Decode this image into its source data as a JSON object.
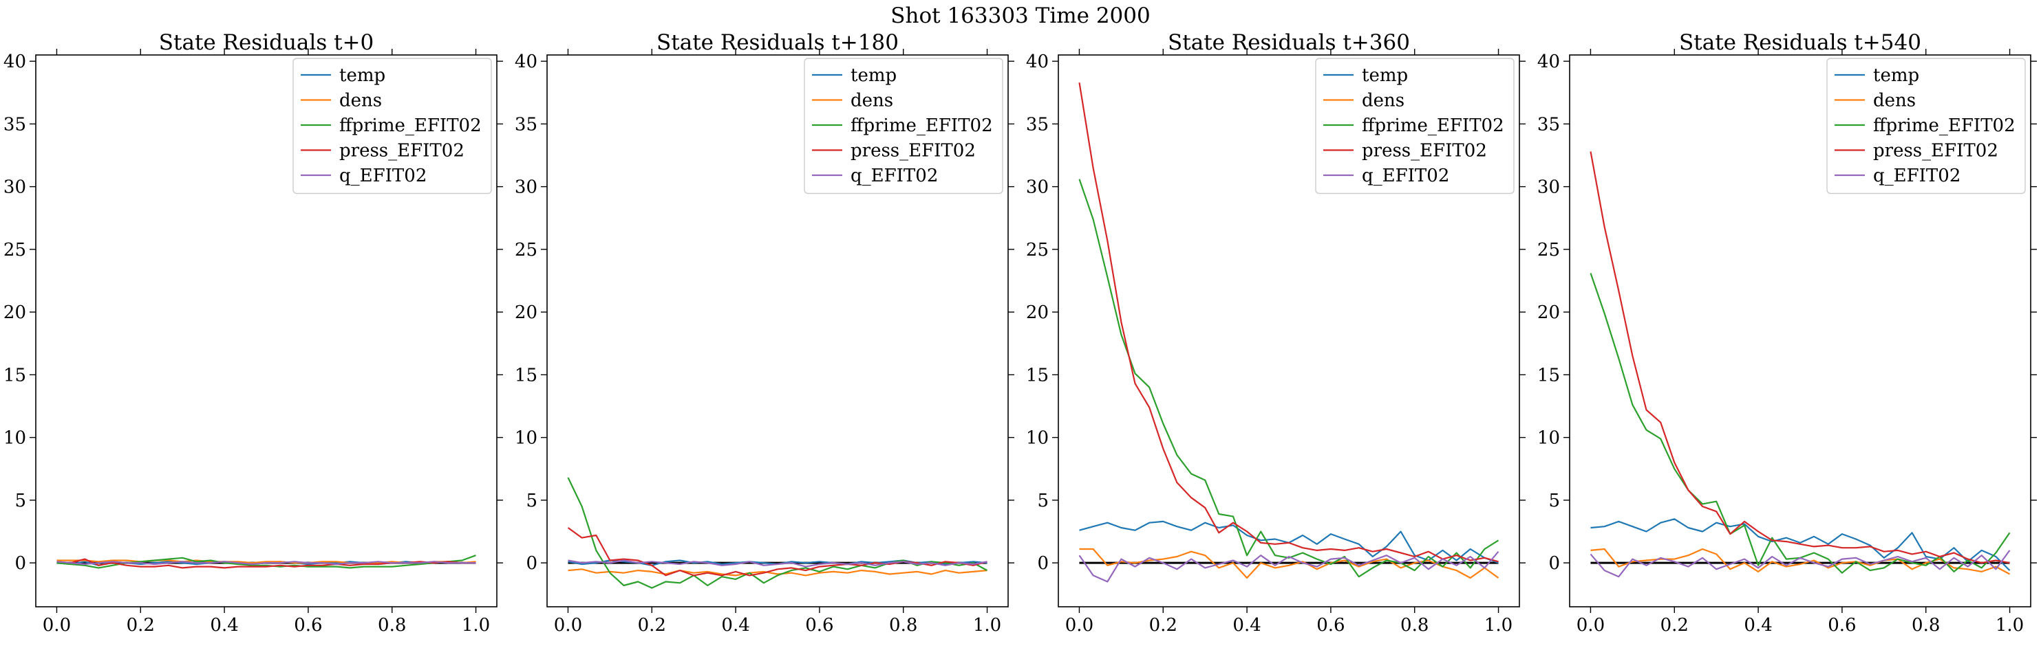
{
  "figure": {
    "suptitle": "Shot 163303   Time 2000"
  },
  "colors": {
    "temp": "#1f77b4",
    "dens": "#ff7f0e",
    "ffprime_EFIT02": "#2ca02c",
    "press_EFIT02": "#d62728",
    "q_EFIT02": "#9467bd",
    "zero_line": "#000000"
  },
  "chart_data": [
    {
      "type": "line",
      "title": "State Residuals t+0",
      "xlabel": "",
      "ylabel": "",
      "xlim": [
        -0.05,
        1.05
      ],
      "ylim": [
        -3.5,
        40.5
      ],
      "xticks": [
        "0.0",
        "0.2",
        "0.4",
        "0.6",
        "0.8",
        "1.0"
      ],
      "yticks": [
        "0",
        "5",
        "10",
        "15",
        "20",
        "25",
        "30",
        "35",
        "40"
      ],
      "legend": "top-right",
      "x": [
        0.0,
        0.033,
        0.067,
        0.1,
        0.133,
        0.167,
        0.2,
        0.233,
        0.267,
        0.3,
        0.333,
        0.367,
        0.4,
        0.433,
        0.467,
        0.5,
        0.533,
        0.567,
        0.6,
        0.633,
        0.667,
        0.7,
        0.733,
        0.767,
        0.8,
        0.833,
        0.867,
        0.9,
        0.933,
        0.967,
        1.0
      ],
      "series": [
        {
          "name": "temp",
          "values": [
            0.0,
            -0.1,
            0.1,
            -0.2,
            0.1,
            0.0,
            -0.1,
            0.0,
            0.1,
            0.0,
            -0.1,
            0.0,
            0.1,
            0.0,
            -0.1,
            0.0,
            0.1,
            0.0,
            -0.1,
            0.0,
            0.0,
            0.1,
            0.0,
            -0.1,
            0.0,
            0.1,
            0.0,
            0.0,
            0.1,
            0.0,
            0.0
          ]
        },
        {
          "name": "dens",
          "values": [
            0.2,
            0.2,
            0.2,
            0.1,
            0.2,
            0.2,
            0.1,
            0.2,
            0.2,
            0.1,
            0.2,
            0.1,
            0.1,
            0.1,
            0.0,
            0.1,
            0.1,
            0.0,
            0.0,
            0.1,
            0.1,
            0.0,
            0.0,
            0.0,
            0.1,
            0.0,
            0.0,
            0.1,
            0.1,
            0.0,
            0.1
          ]
        },
        {
          "name": "ffprime_EFIT02",
          "values": [
            0.0,
            -0.1,
            -0.2,
            -0.4,
            -0.2,
            0.0,
            0.1,
            0.2,
            0.3,
            0.4,
            0.1,
            0.2,
            0.0,
            -0.1,
            -0.2,
            -0.2,
            -0.3,
            -0.2,
            -0.3,
            -0.3,
            -0.3,
            -0.4,
            -0.3,
            -0.3,
            -0.3,
            -0.2,
            -0.1,
            0.0,
            0.1,
            0.2,
            0.6
          ]
        },
        {
          "name": "press_EFIT02",
          "values": [
            0.1,
            0.0,
            0.3,
            -0.2,
            0.0,
            -0.2,
            -0.3,
            -0.3,
            -0.2,
            -0.4,
            -0.3,
            -0.3,
            -0.4,
            -0.3,
            -0.3,
            -0.3,
            -0.2,
            -0.3,
            -0.2,
            -0.2,
            -0.1,
            -0.2,
            -0.1,
            -0.1,
            0.0,
            0.0,
            0.1,
            0.0,
            0.1,
            0.0,
            0.0
          ]
        },
        {
          "name": "q_EFIT02",
          "values": [
            0.1,
            0.0,
            -0.1,
            0.0,
            0.1,
            0.0,
            0.0,
            -0.1,
            0.0,
            0.1,
            0.0,
            0.0,
            0.1,
            0.0,
            -0.1,
            0.0,
            0.0,
            0.1,
            0.0,
            0.0,
            -0.1,
            0.0,
            0.0,
            0.1,
            0.0,
            0.0,
            0.0,
            0.1,
            0.0,
            0.0,
            0.0
          ]
        }
      ]
    },
    {
      "type": "line",
      "title": "State Residuals t+180",
      "xlabel": "",
      "ylabel": "",
      "xlim": [
        -0.05,
        1.05
      ],
      "ylim": [
        -3.5,
        40.5
      ],
      "xticks": [
        "0.0",
        "0.2",
        "0.4",
        "0.6",
        "0.8",
        "1.0"
      ],
      "yticks": [
        "0",
        "5",
        "10",
        "15",
        "20",
        "25",
        "30",
        "35",
        "40"
      ],
      "legend": "top-right",
      "x": [
        0.0,
        0.033,
        0.067,
        0.1,
        0.133,
        0.167,
        0.2,
        0.233,
        0.267,
        0.3,
        0.333,
        0.367,
        0.4,
        0.433,
        0.467,
        0.5,
        0.533,
        0.567,
        0.6,
        0.633,
        0.667,
        0.7,
        0.733,
        0.767,
        0.8,
        0.833,
        0.867,
        0.9,
        0.933,
        0.967,
        1.0
      ],
      "series": [
        {
          "name": "temp",
          "values": [
            0.1,
            -0.1,
            0.0,
            0.2,
            0.1,
            0.0,
            -0.2,
            0.1,
            0.2,
            0.0,
            0.1,
            -0.1,
            0.0,
            0.1,
            0.0,
            -0.1,
            0.1,
            0.0,
            0.1,
            0.0,
            -0.1,
            0.1,
            0.0,
            0.1,
            0.2,
            0.0,
            0.1,
            -0.1,
            0.0,
            0.1,
            0.0
          ]
        },
        {
          "name": "dens",
          "values": [
            -0.6,
            -0.5,
            -0.8,
            -0.7,
            -0.8,
            -0.6,
            -0.7,
            -0.9,
            -0.6,
            -0.8,
            -0.7,
            -0.9,
            -1.0,
            -0.8,
            -0.7,
            -0.9,
            -0.8,
            -1.0,
            -0.8,
            -0.7,
            -0.8,
            -0.6,
            -0.7,
            -0.9,
            -0.8,
            -0.7,
            -0.9,
            -0.6,
            -0.8,
            -0.7,
            -0.6
          ]
        },
        {
          "name": "ffprime_EFIT02",
          "values": [
            6.8,
            4.5,
            1.0,
            -0.8,
            -1.8,
            -1.5,
            -2.0,
            -1.5,
            -1.6,
            -1.0,
            -1.8,
            -1.1,
            -1.3,
            -0.8,
            -1.6,
            -1.0,
            -0.6,
            -0.4,
            -0.7,
            -0.3,
            -0.5,
            -0.2,
            -0.4,
            0.0,
            0.2,
            -0.2,
            0.1,
            0.0,
            -0.2,
            0.0,
            -0.6
          ]
        },
        {
          "name": "press_EFIT02",
          "values": [
            2.8,
            2.0,
            2.2,
            0.2,
            0.3,
            0.2,
            -0.2,
            -1.0,
            -0.6,
            -1.0,
            -0.8,
            -1.0,
            -0.7,
            -1.0,
            -0.8,
            -0.5,
            -0.4,
            -0.6,
            -0.3,
            -0.2,
            -0.1,
            -0.2,
            0.0,
            -0.1,
            0.1,
            0.0,
            -0.2,
            0.1,
            0.0,
            -0.2,
            0.1
          ]
        },
        {
          "name": "q_EFIT02",
          "values": [
            0.2,
            0.0,
            0.1,
            0.0,
            0.2,
            0.0,
            0.1,
            0.0,
            -0.1,
            0.1,
            0.0,
            -0.2,
            -0.1,
            0.1,
            -0.2,
            -0.1,
            0.0,
            -0.3,
            -0.1,
            0.0,
            -0.1,
            0.0,
            -0.2,
            0.0,
            0.1,
            -0.1,
            0.0,
            -0.2,
            0.0,
            -0.1,
            0.1
          ]
        }
      ]
    },
    {
      "type": "line",
      "title": "State Residuals t+360",
      "xlabel": "",
      "ylabel": "",
      "xlim": [
        -0.05,
        1.05
      ],
      "ylim": [
        -3.5,
        40.5
      ],
      "xticks": [
        "0.0",
        "0.2",
        "0.4",
        "0.6",
        "0.8",
        "1.0"
      ],
      "yticks": [
        "0",
        "5",
        "10",
        "15",
        "20",
        "25",
        "30",
        "35",
        "40"
      ],
      "legend": "top-right",
      "x": [
        0.0,
        0.033,
        0.067,
        0.1,
        0.133,
        0.167,
        0.2,
        0.233,
        0.267,
        0.3,
        0.333,
        0.367,
        0.4,
        0.433,
        0.467,
        0.5,
        0.533,
        0.567,
        0.6,
        0.633,
        0.667,
        0.7,
        0.733,
        0.767,
        0.8,
        0.833,
        0.867,
        0.9,
        0.933,
        0.967,
        1.0
      ],
      "series": [
        {
          "name": "temp",
          "values": [
            2.6,
            2.9,
            3.2,
            2.8,
            2.6,
            3.2,
            3.3,
            2.9,
            2.6,
            3.2,
            2.8,
            3.0,
            2.2,
            1.8,
            1.9,
            1.6,
            2.2,
            1.5,
            2.3,
            1.9,
            1.5,
            0.5,
            1.3,
            2.5,
            0.6,
            0.2,
            1.0,
            0.2,
            1.1,
            0.4,
            0.0
          ]
        },
        {
          "name": "dens",
          "values": [
            1.1,
            1.1,
            -0.2,
            0.1,
            0.0,
            0.2,
            0.3,
            0.5,
            0.9,
            0.6,
            -0.4,
            0.0,
            -1.2,
            0.0,
            -0.4,
            -0.2,
            0.1,
            -0.5,
            0.0,
            0.2,
            -0.3,
            0.1,
            0.3,
            -0.4,
            0.0,
            0.2,
            -0.3,
            -0.6,
            -1.2,
            -0.4,
            -1.2
          ]
        },
        {
          "name": "ffprime_EFIT02",
          "values": [
            30.6,
            27.4,
            22.8,
            18.2,
            15.1,
            14.0,
            11.1,
            8.6,
            7.1,
            6.6,
            3.9,
            3.7,
            0.6,
            2.5,
            0.6,
            0.4,
            0.8,
            0.3,
            -0.1,
            0.5,
            -1.1,
            -0.4,
            0.2,
            0.0,
            -0.6,
            0.5,
            -0.3,
            0.8,
            -0.4,
            1.1,
            1.8
          ]
        },
        {
          "name": "press_EFIT02",
          "values": [
            38.3,
            31.5,
            25.7,
            19.2,
            14.3,
            12.4,
            9.1,
            6.4,
            5.2,
            4.4,
            2.4,
            3.2,
            2.5,
            1.6,
            1.5,
            1.6,
            1.2,
            1.0,
            1.1,
            1.0,
            1.2,
            0.9,
            1.1,
            0.8,
            0.5,
            0.9,
            0.3,
            0.6,
            0.2,
            0.4,
            0.1
          ]
        },
        {
          "name": "q_EFIT02",
          "values": [
            0.6,
            -1.0,
            -1.5,
            0.3,
            -0.3,
            0.4,
            0.0,
            -0.5,
            0.3,
            -0.4,
            -0.1,
            0.2,
            -0.3,
            0.6,
            -0.2,
            0.5,
            0.0,
            -0.3,
            0.3,
            0.4,
            -0.2,
            0.2,
            0.6,
            0.0,
            0.4,
            -0.5,
            0.3,
            -0.2,
            0.5,
            -0.4,
            0.9
          ]
        }
      ]
    },
    {
      "type": "line",
      "title": "State Residuals t+540",
      "xlabel": "",
      "ylabel": "",
      "xlim": [
        -0.05,
        1.05
      ],
      "ylim": [
        -3.5,
        40.5
      ],
      "xticks": [
        "0.0",
        "0.2",
        "0.4",
        "0.6",
        "0.8",
        "1.0"
      ],
      "yticks": [
        "0",
        "5",
        "10",
        "15",
        "20",
        "25",
        "30",
        "35",
        "40"
      ],
      "legend": "top-right",
      "x": [
        0.0,
        0.033,
        0.067,
        0.1,
        0.133,
        0.167,
        0.2,
        0.233,
        0.267,
        0.3,
        0.333,
        0.367,
        0.4,
        0.433,
        0.467,
        0.5,
        0.533,
        0.567,
        0.6,
        0.633,
        0.667,
        0.7,
        0.733,
        0.767,
        0.8,
        0.833,
        0.867,
        0.9,
        0.933,
        0.967,
        1.0
      ],
      "series": [
        {
          "name": "temp",
          "values": [
            2.8,
            2.9,
            3.3,
            2.9,
            2.5,
            3.2,
            3.5,
            2.8,
            2.5,
            3.2,
            2.9,
            3.1,
            2.1,
            1.7,
            2.0,
            1.6,
            2.1,
            1.5,
            2.3,
            1.9,
            1.4,
            0.4,
            1.2,
            2.4,
            0.5,
            0.3,
            1.2,
            0.1,
            1.0,
            0.5,
            -0.6
          ]
        },
        {
          "name": "dens",
          "values": [
            1.0,
            1.1,
            -0.3,
            0.1,
            0.2,
            0.3,
            0.3,
            0.6,
            1.1,
            0.7,
            -0.5,
            0.0,
            -0.7,
            0.1,
            -0.3,
            -0.1,
            0.2,
            -0.4,
            0.0,
            0.1,
            -0.2,
            0.2,
            0.3,
            -0.5,
            0.0,
            0.3,
            -0.4,
            -0.5,
            -0.7,
            -0.3,
            -0.9
          ]
        },
        {
          "name": "ffprime_EFIT02",
          "values": [
            23.1,
            19.9,
            16.3,
            12.6,
            10.6,
            9.9,
            7.5,
            5.8,
            4.7,
            4.9,
            2.3,
            3.0,
            -0.2,
            2.0,
            0.3,
            0.4,
            0.8,
            0.3,
            -0.8,
            0.1,
            -0.6,
            -0.4,
            0.3,
            0.0,
            -0.2,
            0.5,
            -0.7,
            0.2,
            -0.4,
            0.8,
            2.4
          ]
        },
        {
          "name": "press_EFIT02",
          "values": [
            32.8,
            26.8,
            21.7,
            16.5,
            12.2,
            11.2,
            8.0,
            5.8,
            4.5,
            4.1,
            2.3,
            3.3,
            2.5,
            1.8,
            1.7,
            1.5,
            1.3,
            1.4,
            1.2,
            1.2,
            1.3,
            0.9,
            1.0,
            0.7,
            0.9,
            0.5,
            0.8,
            0.3,
            0.0,
            0.2,
            0.0
          ]
        },
        {
          "name": "q_EFIT02",
          "values": [
            0.7,
            -0.6,
            -1.1,
            0.3,
            -0.2,
            0.4,
            0.1,
            -0.3,
            0.4,
            -0.5,
            -0.1,
            0.3,
            -0.4,
            0.5,
            -0.2,
            0.4,
            0.0,
            -0.3,
            0.3,
            0.4,
            -0.1,
            0.2,
            0.5,
            0.1,
            0.4,
            -0.5,
            0.4,
            -0.3,
            0.6,
            -0.5,
            1.0
          ]
        }
      ]
    }
  ]
}
